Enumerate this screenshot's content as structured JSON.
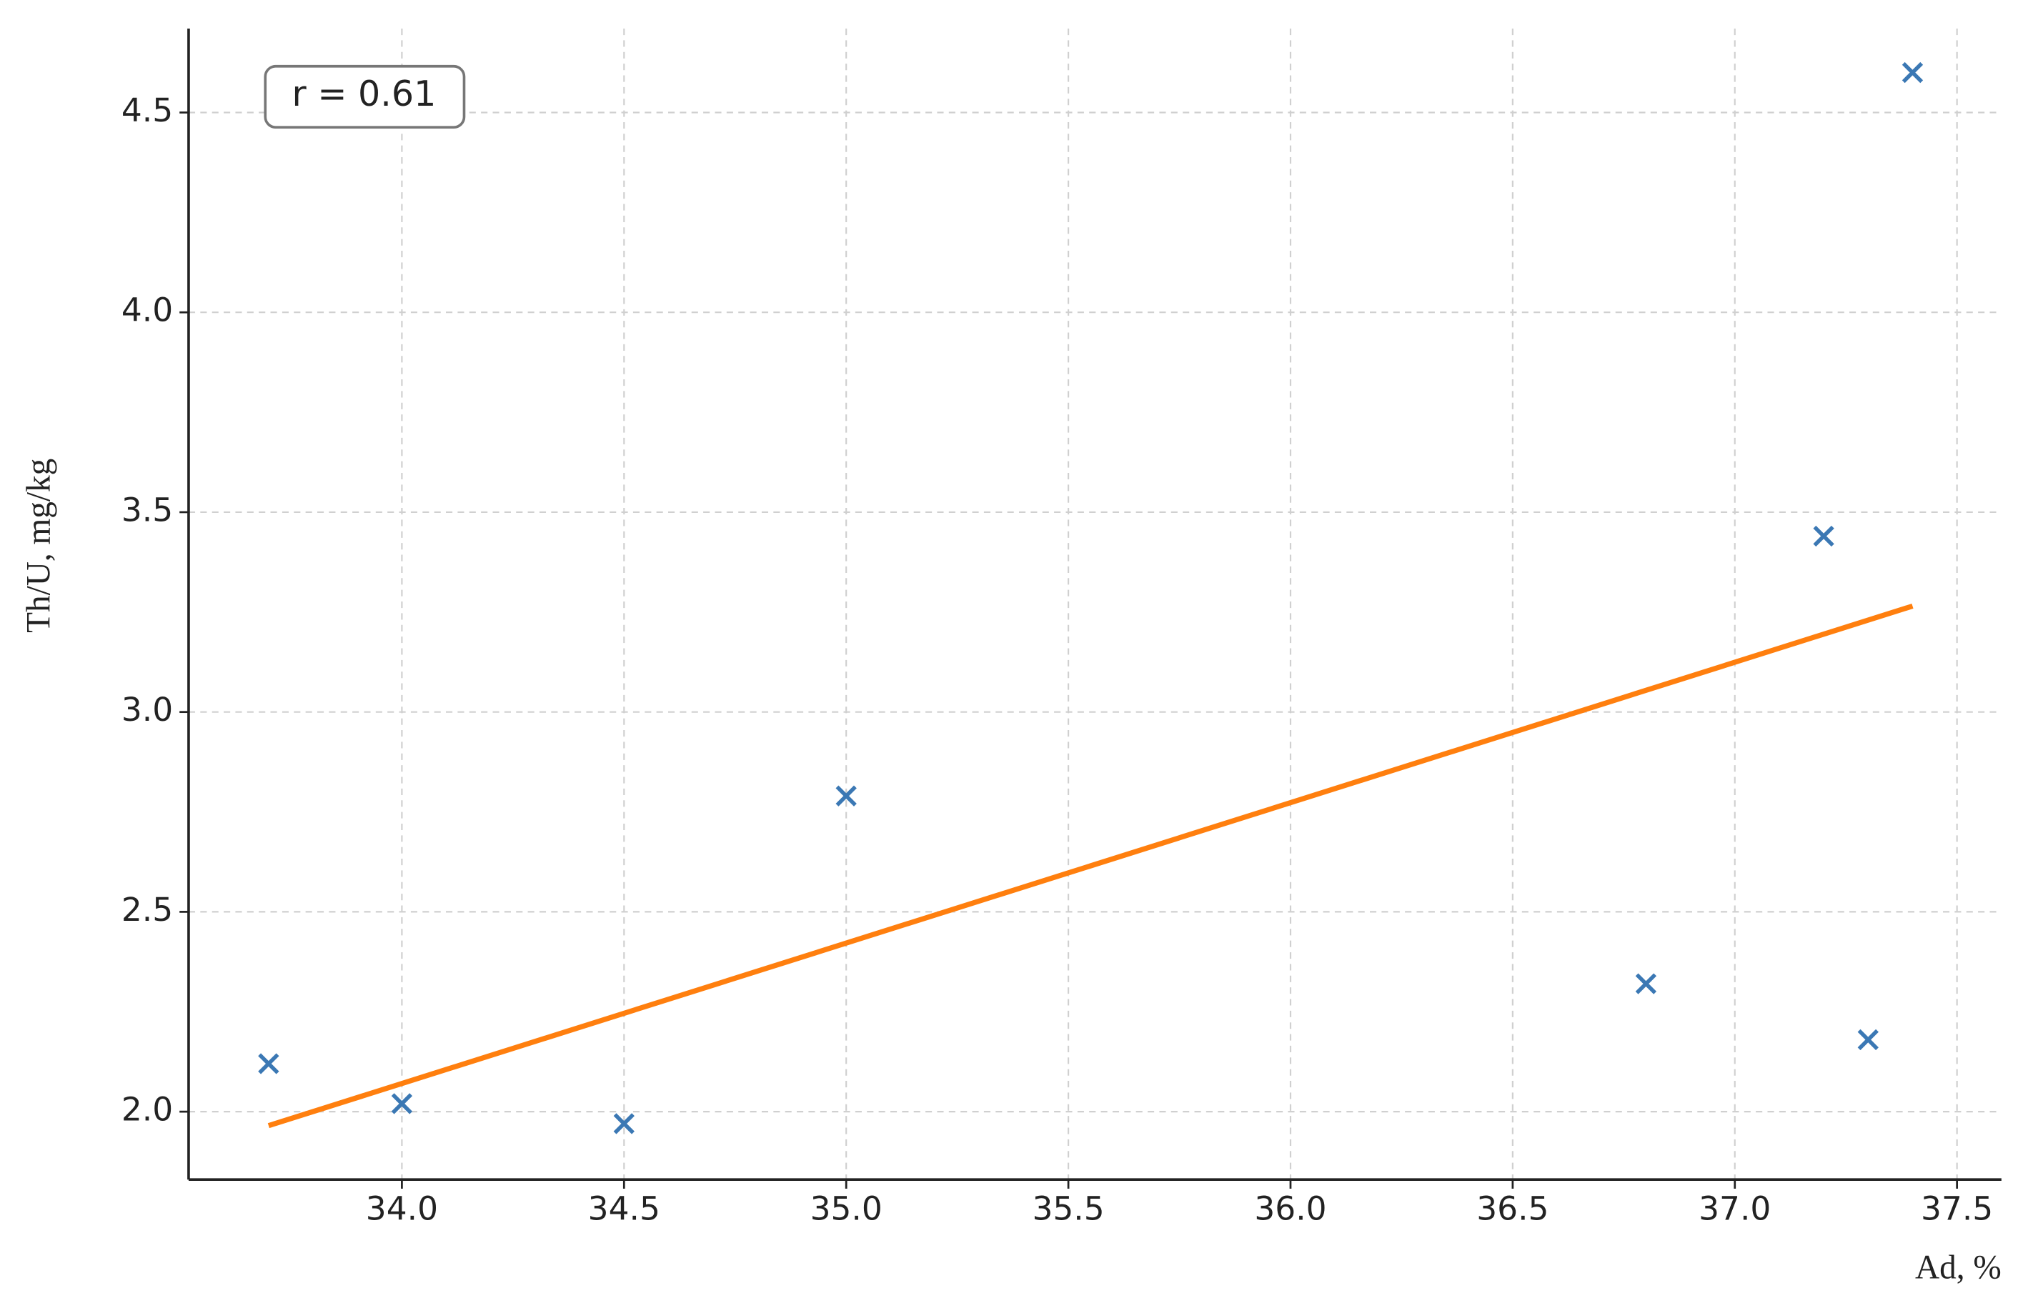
{
  "chart_data": {
    "type": "scatter",
    "x_label": "Ad, %",
    "y_label": "Th/U, mg/kg",
    "annotation": "r = 0.61",
    "series": [
      {
        "x": [
          33.7,
          34.0,
          34.5,
          35.0,
          36.8,
          37.2,
          37.3,
          37.4
        ],
        "values": [
          2.12,
          2.02,
          1.97,
          2.79,
          2.32,
          3.44,
          2.18,
          4.6
        ],
        "color": "#3b78b4",
        "marker": "x"
      }
    ],
    "trend_line": {
      "x": [
        33.7,
        37.4
      ],
      "values": [
        1.965,
        3.265
      ],
      "color": "#ff7f0e"
    },
    "xlim": [
      33.52,
      37.6
    ],
    "ylim": [
      1.83,
      4.71
    ],
    "xticks": [
      {
        "value": 34,
        "label": "34.0"
      },
      34.5,
      {
        "value": 35,
        "label": "35.0"
      },
      35.5,
      {
        "value": 36,
        "label": "36.0"
      },
      36.5,
      {
        "value": 37,
        "label": "37.0"
      },
      37.5
    ],
    "yticks": [
      {
        "value": 2,
        "label": "2.0"
      },
      2.5,
      {
        "value": 3,
        "label": "3.0"
      },
      3.5,
      {
        "value": 4,
        "label": "4.0"
      },
      4.5
    ],
    "grid": true
  }
}
